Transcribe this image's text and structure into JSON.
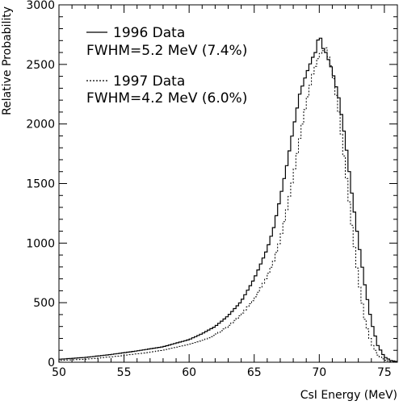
{
  "chart_data": {
    "type": "line",
    "title": "",
    "xlabel": "CsI Energy (MeV)",
    "ylabel": "Relative Probability",
    "xlim": [
      50,
      76
    ],
    "ylim": [
      0,
      3000
    ],
    "x_ticks": [
      50,
      55,
      60,
      65,
      70,
      75
    ],
    "y_ticks": [
      0,
      500,
      1000,
      1500,
      2000,
      2500,
      3000
    ],
    "grid": false,
    "legend_position": "top-left",
    "series": [
      {
        "name": "1996 Data",
        "annotation": "FWHM=5.2 MeV (7.4%)",
        "style": "solid",
        "x": [
          50,
          52,
          54,
          56,
          58,
          60,
          61,
          62,
          63,
          64,
          65,
          66,
          66.5,
          67,
          67.5,
          68,
          68.5,
          69,
          69.5,
          69.8,
          70,
          70.2,
          70.5,
          71,
          71.5,
          72,
          72.5,
          73,
          73.5,
          74,
          74.5,
          75,
          75.5,
          76
        ],
        "values": [
          25,
          40,
          65,
          95,
          130,
          190,
          240,
          300,
          390,
          510,
          700,
          950,
          1130,
          1380,
          1650,
          1960,
          2250,
          2420,
          2560,
          2620,
          2790,
          2650,
          2600,
          2450,
          2220,
          1870,
          1420,
          1020,
          650,
          340,
          140,
          45,
          15,
          5
        ]
      },
      {
        "name": "1997 Data",
        "annotation": "FWHM=4.2 MeV (6.0%)",
        "style": "dotted",
        "x": [
          50,
          52,
          54,
          56,
          58,
          60,
          61,
          62,
          63,
          64,
          65,
          66,
          66.5,
          67,
          67.5,
          68,
          68.5,
          69,
          69.5,
          70,
          70.5,
          71,
          71.5,
          72,
          72.5,
          73,
          73.5,
          74,
          74.5,
          75,
          75.5,
          76
        ],
        "values": [
          15,
          25,
          45,
          70,
          100,
          150,
          180,
          230,
          300,
          400,
          530,
          720,
          850,
          1030,
          1280,
          1560,
          1880,
          2180,
          2420,
          2580,
          2640,
          2450,
          2100,
          1640,
          1150,
          700,
          360,
          160,
          60,
          20,
          6,
          2
        ]
      }
    ]
  }
}
